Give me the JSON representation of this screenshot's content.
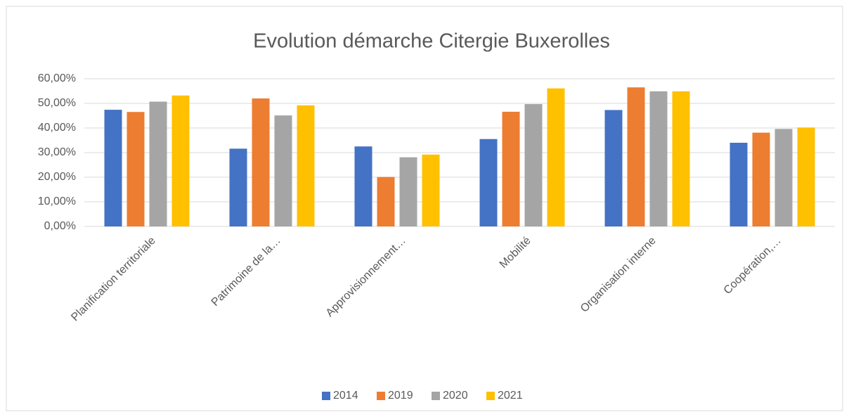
{
  "chart_data": {
    "type": "bar",
    "title": "Evolution démarche Citergie Buxerolles",
    "categories": [
      "Planification territoriale",
      "Patrimoine de la…",
      "Approvisionnement…",
      "Mobilité",
      "Organisation interne",
      "Coopération,…"
    ],
    "series": [
      {
        "name": "2014",
        "color": "#4472c4",
        "values": [
          47.4,
          31.6,
          32.5,
          35.5,
          47.3,
          34.0
        ]
      },
      {
        "name": "2019",
        "color": "#ed7d31",
        "values": [
          46.5,
          52.0,
          20.1,
          46.6,
          56.5,
          38.1
        ]
      },
      {
        "name": "2020",
        "color": "#a5a5a5",
        "values": [
          50.7,
          45.1,
          28.1,
          49.7,
          54.9,
          39.6
        ]
      },
      {
        "name": "2021",
        "color": "#ffc000",
        "values": [
          53.2,
          49.2,
          29.2,
          56.1,
          54.9,
          40.2
        ]
      }
    ],
    "ylim": [
      0,
      60
    ],
    "yticks": [
      {
        "value": 0,
        "label": "0,00%"
      },
      {
        "value": 10,
        "label": "10,00%"
      },
      {
        "value": 20,
        "label": "20,00%"
      },
      {
        "value": 30,
        "label": "30,00%"
      },
      {
        "value": 40,
        "label": "40,00%"
      },
      {
        "value": 50,
        "label": "50,00%"
      },
      {
        "value": 60,
        "label": "60,00%"
      }
    ],
    "grid": true,
    "legend": "bottom"
  }
}
